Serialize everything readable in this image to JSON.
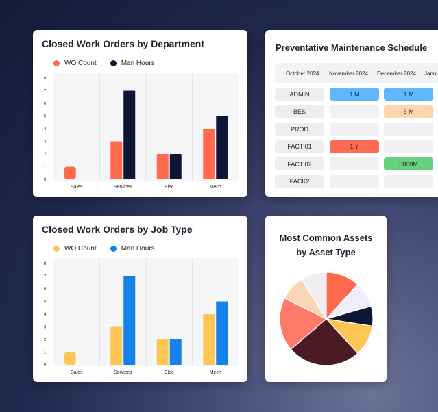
{
  "colors": {
    "wo_count_dept": "#ff6a4d",
    "man_hours_dept": "#0e1635",
    "wo_count_job": "#ffc656",
    "man_hours_job": "#1681e8",
    "pm_blue": "#5fb8ff",
    "pm_peach": "#fdd6b0",
    "pm_red": "#ff6b52",
    "pm_green": "#68d17e"
  },
  "charts": [
    {
      "id": "dept",
      "title": "Closed Work Orders by Department",
      "chart_data": {
        "type": "bar",
        "title": "Closed Work Orders by Department",
        "categories": [
          "Sales",
          "Services",
          "Elec",
          "Mech"
        ],
        "series": [
          {
            "name": "WO Count",
            "values": [
              1,
              3,
              2,
              4
            ]
          },
          {
            "name": "Man Hours",
            "values": [
              0,
              7,
              2,
              5
            ]
          }
        ],
        "yticks": [
          "0",
          "1",
          "2",
          "3",
          "4",
          "5",
          "6",
          "7",
          "8"
        ],
        "ylim": [
          0,
          8
        ],
        "legend": "top-left",
        "grid": true
      }
    },
    {
      "id": "job",
      "title": "Closed Work Orders by Job Type",
      "chart_data": {
        "type": "bar",
        "title": "Closed Work Orders by Job Type",
        "categories": [
          "Sales",
          "Services",
          "Elec",
          "Mech"
        ],
        "series": [
          {
            "name": "WO Count",
            "values": [
              1,
              3,
              2,
              4
            ]
          },
          {
            "name": "Man Hours",
            "values": [
              0,
              7,
              2,
              5
            ]
          }
        ],
        "yticks": [
          "0",
          "1",
          "2",
          "3",
          "4",
          "5",
          "6",
          "7",
          "8"
        ],
        "ylim": [
          0,
          8
        ],
        "legend": "top-left",
        "grid": true
      }
    }
  ],
  "pm": {
    "title": "Preventative Maintenance Schedule",
    "columns": [
      "October 2024",
      "November 2024",
      "December 2024",
      "Janu"
    ],
    "rows": [
      {
        "label": "ADMIN",
        "cells": [
          {
            "text": "1 M",
            "color": "blue"
          },
          {
            "text": "1 M",
            "color": "blue"
          }
        ]
      },
      {
        "label": "BES",
        "cells": [
          {
            "text": "",
            "color": ""
          },
          {
            "text": "6 M",
            "color": "peach"
          }
        ]
      },
      {
        "label": "PROD",
        "cells": [
          {
            "text": "",
            "color": ""
          },
          {
            "text": "",
            "color": ""
          }
        ]
      },
      {
        "label": "FACT 01",
        "cells": [
          {
            "text": "1 Y",
            "color": "red"
          },
          {
            "text": "",
            "color": ""
          }
        ]
      },
      {
        "label": "FACT 02",
        "cells": [
          {
            "text": "",
            "color": ""
          },
          {
            "text": "5000M",
            "color": "green"
          }
        ]
      },
      {
        "label": "PACK2",
        "cells": [
          {
            "text": "",
            "color": ""
          },
          {
            "text": "",
            "color": ""
          }
        ]
      }
    ]
  },
  "pie": {
    "title_line1": "Most Common Assets",
    "title_line2": "by Asset Type",
    "chart_data": {
      "type": "pie",
      "title": "Most Common Assets by Asset Type",
      "slices": [
        {
          "value": 12,
          "color": "#ff6a4d"
        },
        {
          "value": 9,
          "color": "#f0eef9"
        },
        {
          "value": 7,
          "color": "#0e1635"
        },
        {
          "value": 11,
          "color": "#ffc656"
        },
        {
          "value": 26,
          "color": "#4a1a24"
        },
        {
          "value": 19,
          "color": "#ff7a68"
        },
        {
          "value": 9,
          "color": "#f8d6b5"
        },
        {
          "value": 9,
          "color": "#f0eef3"
        }
      ]
    }
  }
}
